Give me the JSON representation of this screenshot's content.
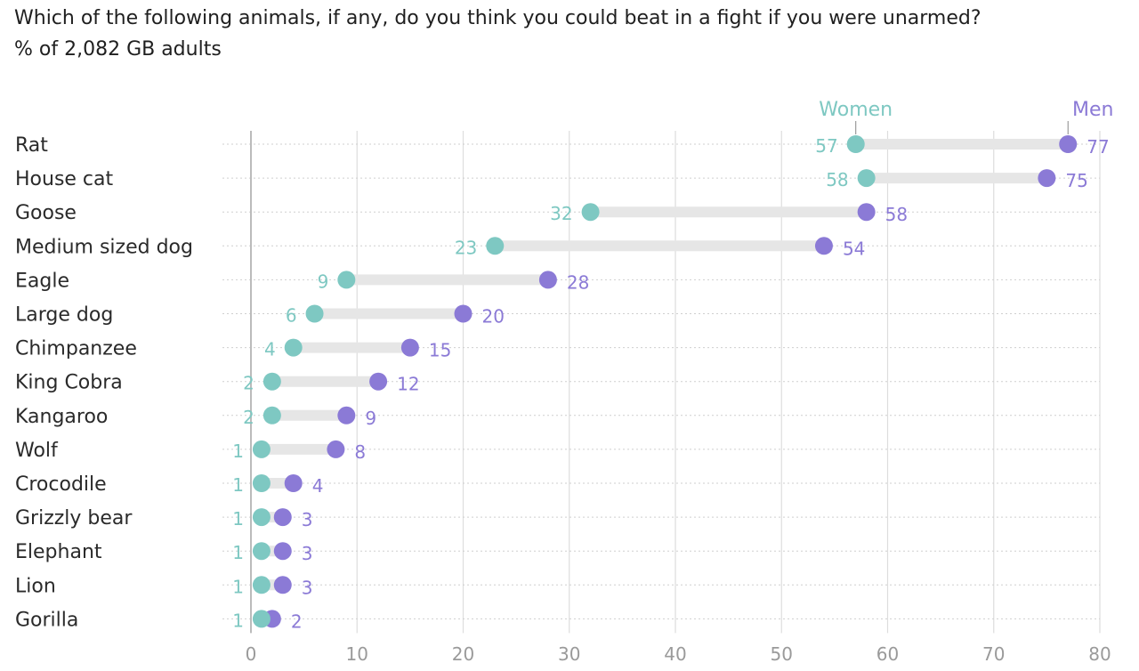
{
  "title": "Which of the following animals, if any, do you think you could beat in a fight if you were unarmed?",
  "subtitle": "% of 2,082 GB adults",
  "colors": {
    "women": "#7ec8c2",
    "men": "#8b7ad6",
    "connector": "#e6e6e6",
    "grid": "#dddddd",
    "axis": "#bbbbbb",
    "tick": "#9a9a9a",
    "label": "#2a2a2a"
  },
  "chart_data": {
    "type": "dumbbell",
    "categories": [
      "Rat",
      "House cat",
      "Goose",
      "Medium sized dog",
      "Eagle",
      "Large dog",
      "Chimpanzee",
      "King Cobra",
      "Kangaroo",
      "Wolf",
      "Crocodile",
      "Grizzly bear",
      "Elephant",
      "Lion",
      "Gorilla"
    ],
    "series": [
      {
        "name": "Women",
        "values": [
          57,
          58,
          32,
          23,
          9,
          6,
          4,
          2,
          2,
          1,
          1,
          1,
          1,
          1,
          1
        ]
      },
      {
        "name": "Men",
        "values": [
          77,
          75,
          58,
          54,
          28,
          20,
          15,
          12,
          9,
          8,
          4,
          3,
          3,
          3,
          2
        ]
      }
    ],
    "xlim": [
      0,
      80
    ],
    "xticks": [
      0,
      10,
      20,
      30,
      40,
      50,
      60,
      70,
      80
    ],
    "grid": true,
    "legend": "inline-top"
  }
}
